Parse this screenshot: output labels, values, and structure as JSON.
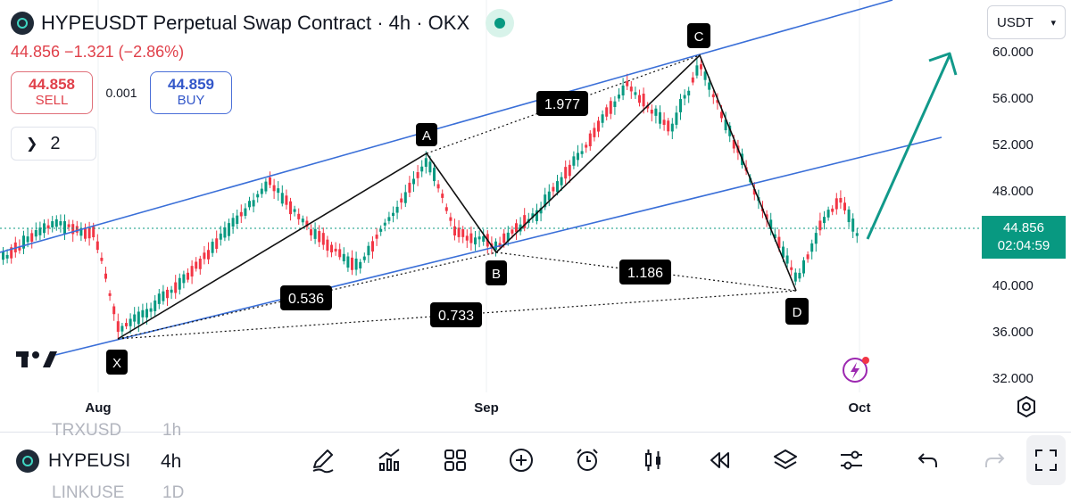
{
  "header": {
    "title": "HYPEUSDT Perpetual Swap Contract · 4h · OKX",
    "price_line": "44.856  −1.321 (−2.86%)"
  },
  "trade": {
    "sell_price": "44.858",
    "sell_label": "SELL",
    "spread": "0.001",
    "buy_price": "44.859",
    "buy_label": "BUY"
  },
  "indicators_toggle": {
    "count": "2"
  },
  "currency": {
    "selected": "USDT"
  },
  "price_axis": {
    "ticks": [
      "60.000",
      "56.000",
      "52.000",
      "48.000",
      "40.000",
      "36.000",
      "32.000"
    ]
  },
  "time_axis": {
    "ticks": [
      "Aug",
      "Sep",
      "Oct"
    ]
  },
  "last_price": {
    "price": "44.856",
    "countdown": "02:04:59"
  },
  "pattern": {
    "points": [
      "X",
      "A",
      "B",
      "C",
      "D"
    ],
    "ratios": [
      "0.536",
      "1.977",
      "0.733",
      "1.186"
    ]
  },
  "bottom_bar": {
    "ticker": "HYPEUSI",
    "interval": "4h",
    "ghost_ticker_above": "TRXUSD",
    "ghost_interval_above": "1h",
    "ghost_ticker_below": "LINKUSE",
    "ghost_interval_below": "1D",
    "tools": [
      "pencil-icon",
      "indicators-icon",
      "grid-icon",
      "plus-circle-icon",
      "alarm-icon",
      "candles-icon",
      "replay-icon",
      "layers-icon",
      "sliders-icon",
      "undo-icon",
      "redo-icon",
      "fullscreen-icon"
    ]
  },
  "colors": {
    "up": "#089981",
    "down": "#f23645",
    "channel": "#3a6fd8",
    "arrow": "#11998a"
  }
}
